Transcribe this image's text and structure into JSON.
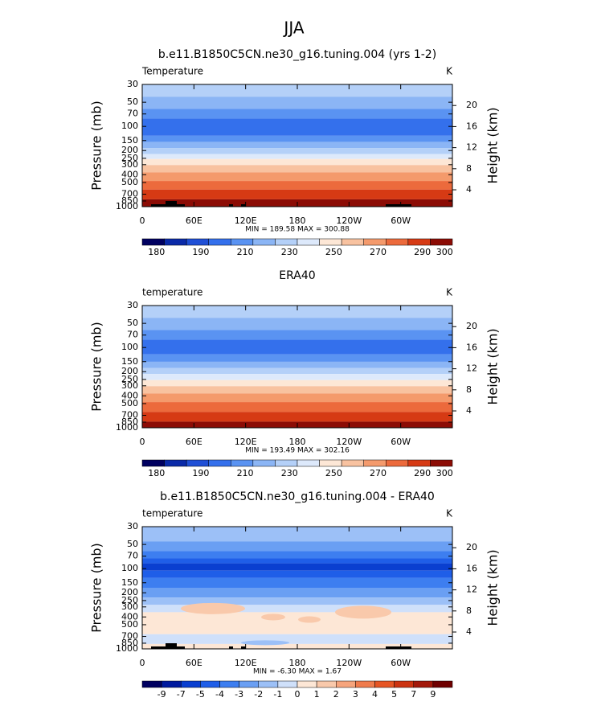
{
  "title": "JJA",
  "chart_data": [
    {
      "type": "contour",
      "title": "b.e11.B1850C5CN.ne30_g16.tuning.004 (yrs 1-2)",
      "label": "Temperature",
      "units": "K",
      "ylabel": "Pressure (mb)",
      "y2label": "Height (km)",
      "stats": "MIN = 189.58   MAX = 300.88",
      "xlim": [
        0,
        360
      ],
      "xticks": [
        0,
        {
          "value": 60,
          "label": "60E"
        },
        {
          "value": 120,
          "label": "120E"
        },
        180,
        {
          "value": 240,
          "label": "120W"
        },
        {
          "value": 300,
          "label": "60W"
        }
      ],
      "ylim": [
        1000,
        30
      ],
      "log_y": true,
      "yticks": [
        30,
        50,
        70,
        100,
        150,
        200,
        250,
        300,
        400,
        500,
        700,
        850,
        1000
      ],
      "y2lim": [
        0.8,
        24
      ],
      "y2ticks": [
        4,
        8,
        12,
        16,
        20
      ],
      "colorbar": {
        "colors": [
          "#000060",
          "#0a2aa8",
          "#1f4fd6",
          "#3470ec",
          "#5a93f2",
          "#8bb5f5",
          "#b4d0f8",
          "#dde9fb",
          "#fde7d6",
          "#f8c2a0",
          "#f49a6c",
          "#ec6a3c",
          "#d63a14",
          "#8c0c05"
        ],
        "labels": [
          180,
          null,
          190,
          null,
          210,
          null,
          230,
          null,
          250,
          null,
          270,
          null,
          290,
          300
        ]
      }
    },
    {
      "type": "contour",
      "title": "ERA40",
      "label": "temperature",
      "units": "K",
      "ylabel": "Pressure (mb)",
      "y2label": "Height (km)",
      "stats": "MIN = 193.49   MAX = 302.16",
      "xlim": [
        0,
        360
      ],
      "xticks": [
        0,
        {
          "value": 60,
          "label": "60E"
        },
        {
          "value": 120,
          "label": "120E"
        },
        180,
        {
          "value": 240,
          "label": "120W"
        },
        {
          "value": 300,
          "label": "60W"
        }
      ],
      "ylim": [
        1000,
        30
      ],
      "log_y": true,
      "yticks": [
        30,
        50,
        70,
        100,
        150,
        200,
        250,
        300,
        400,
        500,
        700,
        850,
        1000
      ],
      "y2lim": [
        0.8,
        24
      ],
      "y2ticks": [
        4,
        8,
        12,
        16,
        20
      ],
      "colorbar": {
        "colors": [
          "#000060",
          "#0a2aa8",
          "#1f4fd6",
          "#3470ec",
          "#5a93f2",
          "#8bb5f5",
          "#b4d0f8",
          "#dde9fb",
          "#fde7d6",
          "#f8c2a0",
          "#f49a6c",
          "#ec6a3c",
          "#d63a14",
          "#8c0c05"
        ],
        "labels": [
          180,
          null,
          190,
          null,
          210,
          null,
          230,
          null,
          250,
          null,
          270,
          null,
          290,
          300
        ]
      }
    },
    {
      "type": "contour",
      "title": "b.e11.B1850C5CN.ne30_g16.tuning.004 - ERA40",
      "label": "temperature",
      "units": "K",
      "ylabel": "Pressure (mb)",
      "y2label": "Height (km)",
      "stats": "MIN =  -6.30   MAX =   1.67",
      "xlim": [
        0,
        360
      ],
      "xticks": [
        0,
        {
          "value": 60,
          "label": "60E"
        },
        {
          "value": 120,
          "label": "120E"
        },
        180,
        {
          "value": 240,
          "label": "120W"
        },
        {
          "value": 300,
          "label": "60W"
        }
      ],
      "ylim": [
        1000,
        30
      ],
      "log_y": true,
      "yticks": [
        30,
        50,
        70,
        100,
        150,
        200,
        250,
        300,
        400,
        500,
        700,
        850,
        1000
      ],
      "y2lim": [
        0.8,
        24
      ],
      "y2ticks": [
        4,
        8,
        12,
        16,
        20
      ],
      "colorbar": {
        "colors": [
          "#000060",
          "#001a9e",
          "#0a3fd0",
          "#1f5ee8",
          "#3d7ef0",
          "#6a9ff3",
          "#9cc0f7",
          "#cfe0fa",
          "#fde7d6",
          "#f9c9ab",
          "#f6a47c",
          "#f07b4c",
          "#e65524",
          "#cc3310",
          "#a3180a",
          "#700000"
        ],
        "labels": [
          -9,
          -7,
          -5,
          -4,
          -3,
          -2,
          -1,
          0,
          1,
          2,
          3,
          4,
          5,
          7,
          9
        ]
      }
    }
  ]
}
